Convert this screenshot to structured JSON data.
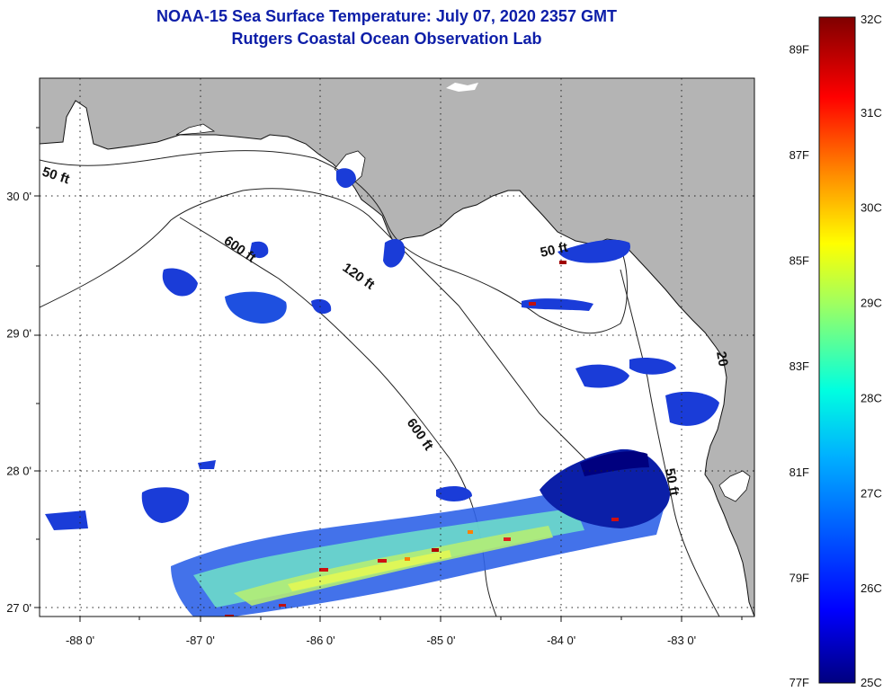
{
  "header": {
    "title_line1": "NOAA-15 Sea Surface Temperature:  July 07, 2020 2357 GMT",
    "title_line2": "Rutgers Coastal Ocean Observation Lab"
  },
  "map": {
    "x_ticks": [
      {
        "lon": -88,
        "label": "-88 0'"
      },
      {
        "lon": -87,
        "label": "-87 0'"
      },
      {
        "lon": -86,
        "label": "-86 0'"
      },
      {
        "lon": -85,
        "label": "-85 0'"
      },
      {
        "lon": -84,
        "label": "-84 0'"
      },
      {
        "lon": -83,
        "label": "-83 0'"
      }
    ],
    "y_ticks": [
      {
        "lat": 30,
        "label": "30 0'"
      },
      {
        "lat": 29,
        "label": "29 0'"
      },
      {
        "lat": 28,
        "label": "28 0'"
      },
      {
        "lat": 27,
        "label": "27 0'"
      }
    ],
    "contour_labels": {
      "c50w": "50 ft",
      "c600a": "600 ft",
      "c120": "120 ft",
      "c50n": "50 ft",
      "c600b": "600 ft",
      "c50e": "50 ft",
      "c20": "20"
    },
    "colors": {
      "land": "#b4b4b4",
      "water": "#ffffff"
    }
  },
  "colorbar": {
    "celsius_labels": [
      {
        "value": 32,
        "label": "32C"
      },
      {
        "value": 31,
        "label": "31C"
      },
      {
        "value": 30,
        "label": "30C"
      },
      {
        "value": 29,
        "label": "29C"
      },
      {
        "value": 28,
        "label": "28C"
      },
      {
        "value": 27,
        "label": "27C"
      },
      {
        "value": 26,
        "label": "26C"
      },
      {
        "value": 25,
        "label": "25C"
      }
    ],
    "fahrenheit_labels": [
      {
        "value": 89,
        "label": "89F"
      },
      {
        "value": 87,
        "label": "87F"
      },
      {
        "value": 85,
        "label": "85F"
      },
      {
        "value": 83,
        "label": "83F"
      },
      {
        "value": 81,
        "label": "81F"
      },
      {
        "value": 79,
        "label": "79F"
      },
      {
        "value": 77,
        "label": "77F"
      }
    ],
    "range_c": [
      25,
      32
    ],
    "gradient": [
      "#00007f",
      "#0000ff",
      "#007fff",
      "#00ffff",
      "#7fff7f",
      "#ffff00",
      "#ff7f00",
      "#ff0000",
      "#7f0000"
    ]
  }
}
